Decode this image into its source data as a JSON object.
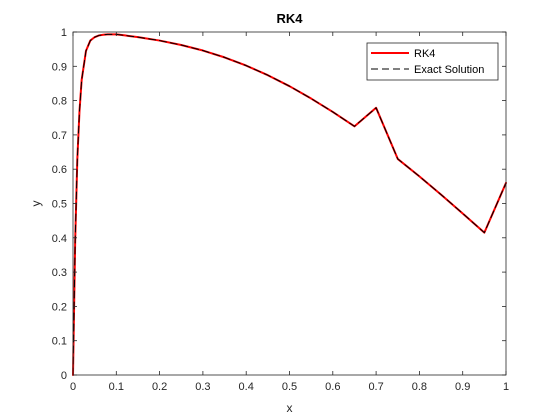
{
  "chart_data": {
    "type": "line",
    "title": "RK4",
    "xlabel": "x",
    "ylabel": "y",
    "xlim": [
      0,
      1
    ],
    "ylim": [
      0,
      1
    ],
    "xticks": [
      "0",
      "0.1",
      "0.2",
      "0.3",
      "0.4",
      "0.5",
      "0.6",
      "0.7",
      "0.8",
      "0.9",
      "1"
    ],
    "yticks": [
      "0",
      "0.1",
      "0.2",
      "0.3",
      "0.4",
      "0.5",
      "0.6",
      "0.7",
      "0.8",
      "0.9",
      "1"
    ],
    "grid": false,
    "legend_position": "top-right",
    "series": [
      {
        "name": "RK4",
        "color": "#ff0000",
        "style": "solid",
        "x": [
          0,
          0.005,
          0.01,
          0.015,
          0.02,
          0.03,
          0.04,
          0.05,
          0.06,
          0.07,
          0.08,
          0.09,
          0.1,
          0.12,
          0.15,
          0.2,
          0.25,
          0.3,
          0.35,
          0.4,
          0.45,
          0.5,
          0.55,
          0.6,
          0.65,
          0.7,
          0.75,
          0.8,
          0.85,
          0.9,
          0.95,
          1.0
        ],
        "y": [
          0,
          0.39,
          0.63,
          0.77,
          0.86,
          0.945,
          0.975,
          0.985,
          0.99,
          0.992,
          0.993,
          0.993,
          0.993,
          0.99,
          0.985,
          0.975,
          0.962,
          0.946,
          0.926,
          0.902,
          0.874,
          0.842,
          0.806,
          0.767,
          0.725,
          0.779,
          0.63,
          0.579,
          0.526,
          0.471,
          0.415,
          0.56
        ]
      },
      {
        "name": "Exact Solution",
        "color": "#000000",
        "style": "dashed",
        "x": [
          0,
          0.005,
          0.01,
          0.015,
          0.02,
          0.03,
          0.04,
          0.05,
          0.06,
          0.07,
          0.08,
          0.09,
          0.1,
          0.12,
          0.15,
          0.2,
          0.25,
          0.3,
          0.35,
          0.4,
          0.45,
          0.5,
          0.55,
          0.6,
          0.65,
          0.7,
          0.75,
          0.8,
          0.85,
          0.9,
          0.95,
          1.0
        ],
        "y": [
          0,
          0.39,
          0.63,
          0.77,
          0.86,
          0.945,
          0.975,
          0.985,
          0.99,
          0.992,
          0.993,
          0.993,
          0.993,
          0.99,
          0.985,
          0.975,
          0.962,
          0.946,
          0.926,
          0.902,
          0.874,
          0.842,
          0.806,
          0.767,
          0.725,
          0.779,
          0.63,
          0.579,
          0.526,
          0.471,
          0.415,
          0.56
        ]
      }
    ]
  }
}
